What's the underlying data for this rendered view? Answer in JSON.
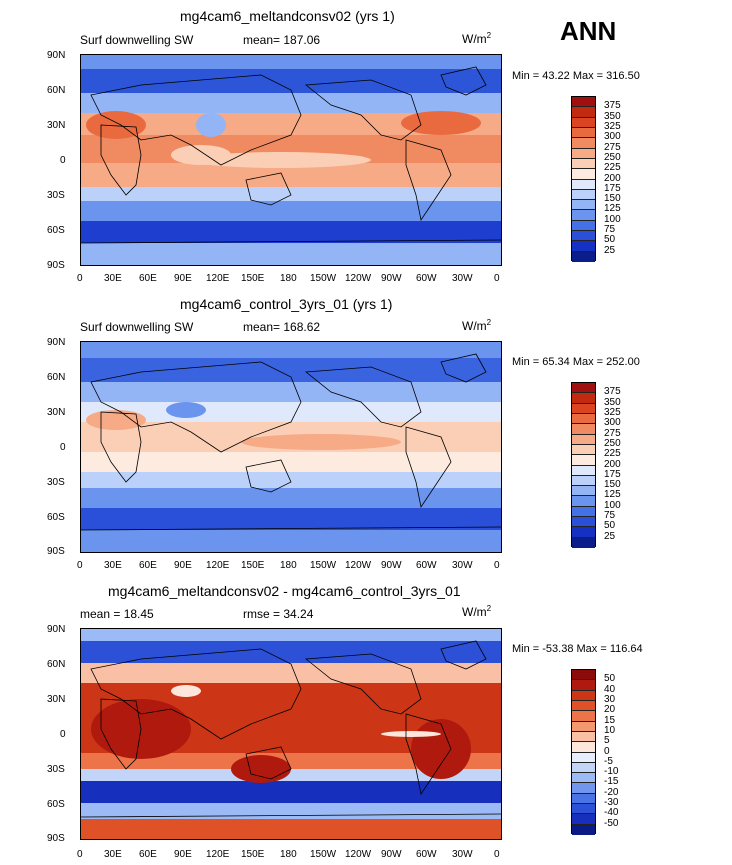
{
  "season_label": "ANN",
  "units": "W/m",
  "units_sup": "2",
  "lat_ticks": [
    "90N",
    "60N",
    "30N",
    "0",
    "30S",
    "60S",
    "90S"
  ],
  "lon_ticks": [
    "0",
    "30E",
    "60E",
    "90E",
    "120E",
    "150E",
    "180",
    "150W",
    "120W",
    "90W",
    "60W",
    "30W",
    "0"
  ],
  "panels": [
    {
      "title": "mg4cam6_meltandconsv02 (yrs 1)",
      "left_label": "Surf downwelling SW",
      "center_label": "mean= 187.06",
      "minmax": "Min =   43.22 Max = 316.50",
      "colorbar": [
        "375",
        "350",
        "325",
        "300",
        "275",
        "250",
        "225",
        "200",
        "175",
        "150",
        "125",
        "100",
        "75",
        "50",
        "25"
      ],
      "palette": [
        "#a01010",
        "#c22a10",
        "#db4420",
        "#ea6a40",
        "#f08a60",
        "#f6aa86",
        "#fbcfb6",
        "#fdebe0",
        "#dfe9fb",
        "#bcd1f9",
        "#93b4f5",
        "#6a94ee",
        "#4571e6",
        "#2a4fd9",
        "#1431c4",
        "#0a1d8a"
      ]
    },
    {
      "title": "mg4cam6_control_3yrs_01 (yrs 1)",
      "left_label": "Surf downwelling SW",
      "center_label": "mean= 168.62",
      "minmax": "Min =   65.34 Max = 252.00",
      "colorbar": [
        "375",
        "350",
        "325",
        "300",
        "275",
        "250",
        "225",
        "200",
        "175",
        "150",
        "125",
        "100",
        "75",
        "50",
        "25"
      ],
      "palette": [
        "#a01010",
        "#c22a10",
        "#db4420",
        "#ea6a40",
        "#f08a60",
        "#f6aa86",
        "#fbcfb6",
        "#fdebe0",
        "#dfe9fb",
        "#bcd1f9",
        "#93b4f5",
        "#6a94ee",
        "#4571e6",
        "#2a4fd9",
        "#1431c4",
        "#0a1d8a"
      ]
    },
    {
      "title": "mg4cam6_meltandconsv02 - mg4cam6_control_3yrs_01",
      "left_label": "mean =   18.45",
      "center_label": "rmse =   34.24",
      "minmax": "Min = -53.38 Max = 116.64",
      "colorbar": [
        "50",
        "40",
        "30",
        "20",
        "15",
        "10",
        "5",
        "0",
        "-5",
        "-10",
        "-15",
        "-20",
        "-30",
        "-40",
        "-50"
      ],
      "palette": [
        "#8b0a0a",
        "#b01a0e",
        "#cc3516",
        "#df5228",
        "#ed7448",
        "#f49870",
        "#fac0a6",
        "#fde6dc",
        "#e6eefc",
        "#c2d5f9",
        "#9cbaf5",
        "#7296ee",
        "#4a74e5",
        "#2c50d6",
        "#1630bd",
        "#0a1b86"
      ]
    }
  ]
}
